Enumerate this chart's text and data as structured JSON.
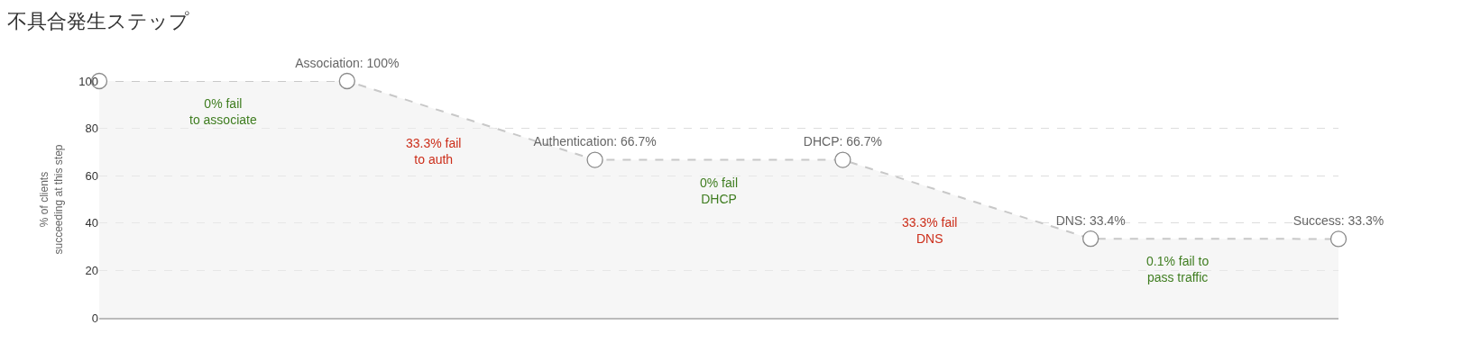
{
  "chart_data": {
    "type": "area",
    "title": "不具合発生ステップ",
    "ylabel": "% of clients\nsucceeding at this step",
    "categories": [
      null,
      null,
      null,
      null,
      null,
      null
    ],
    "series": [
      {
        "color": "#c8c8c8",
        "values": [
          100,
          100,
          66.7,
          66.7,
          33.4,
          33.3
        ],
        "value_labels": [
          null,
          "Association: 100%",
          "Authentication: 66.7%",
          "DHCP: 66.7%",
          "DNS: 33.4%",
          "Success: 33.3%"
        ]
      }
    ],
    "annotations": [
      "0% fail\nto associate",
      "33.3% fail\nto auth",
      "0% fail\nDHCP",
      "33.3% fail\nDNS",
      "0.1% fail to\npass traffic"
    ],
    "ylim": [
      0,
      100
    ],
    "yticks": [
      0,
      20,
      40,
      60,
      80,
      100
    ],
    "grid": "y",
    "tick_labels": "y",
    "marker": "circle",
    "line_style": "dashed"
  }
}
